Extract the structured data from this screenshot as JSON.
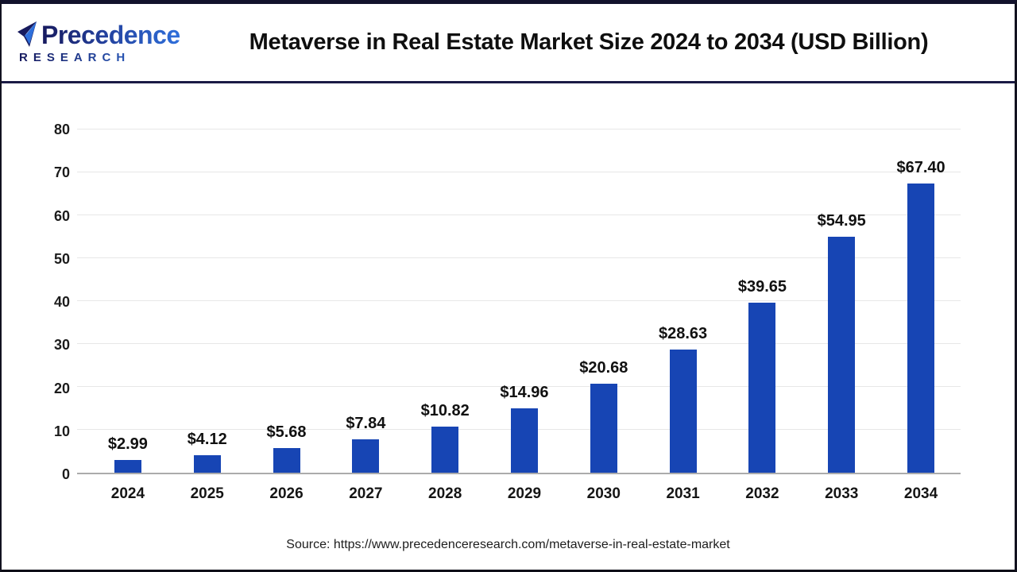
{
  "header": {
    "logo": {
      "brand": "Precedence",
      "sub": "RESEARCH"
    },
    "title": "Metaverse in Real Estate Market Size 2024 to 2034 (USD Billion)"
  },
  "chart_data": {
    "type": "bar",
    "title": "Metaverse in Real Estate Market Size 2024 to 2034 (USD Billion)",
    "categories": [
      "2024",
      "2025",
      "2026",
      "2027",
      "2028",
      "2029",
      "2030",
      "2031",
      "2032",
      "2033",
      "2034"
    ],
    "values": [
      2.99,
      4.12,
      5.68,
      7.84,
      10.82,
      14.96,
      20.68,
      28.63,
      39.65,
      54.95,
      67.4
    ],
    "value_labels": [
      "$2.99",
      "$4.12",
      "$5.68",
      "$7.84",
      "$10.82",
      "$14.96",
      "$20.68",
      "$28.63",
      "$39.65",
      "$54.95",
      "$67.40"
    ],
    "xlabel": "",
    "ylabel": "",
    "ylim": [
      0,
      80
    ],
    "yticks": [
      0,
      10,
      20,
      30,
      40,
      50,
      60,
      70,
      80
    ],
    "grid": "horizontal",
    "legend": "none",
    "bar_color": "#1745b4"
  },
  "footer": {
    "source": "Source: https://www.precedenceresearch.com/metaverse-in-real-estate-market"
  },
  "colors": {
    "bar": "#1745b4",
    "gridline": "#e7e7e7",
    "axis_line": "#ababab",
    "header_rule": "#1b1b45",
    "logo_navy": "#171a5e",
    "logo_blue": "#2e6fdb",
    "title_text": "#0f0f0f"
  }
}
